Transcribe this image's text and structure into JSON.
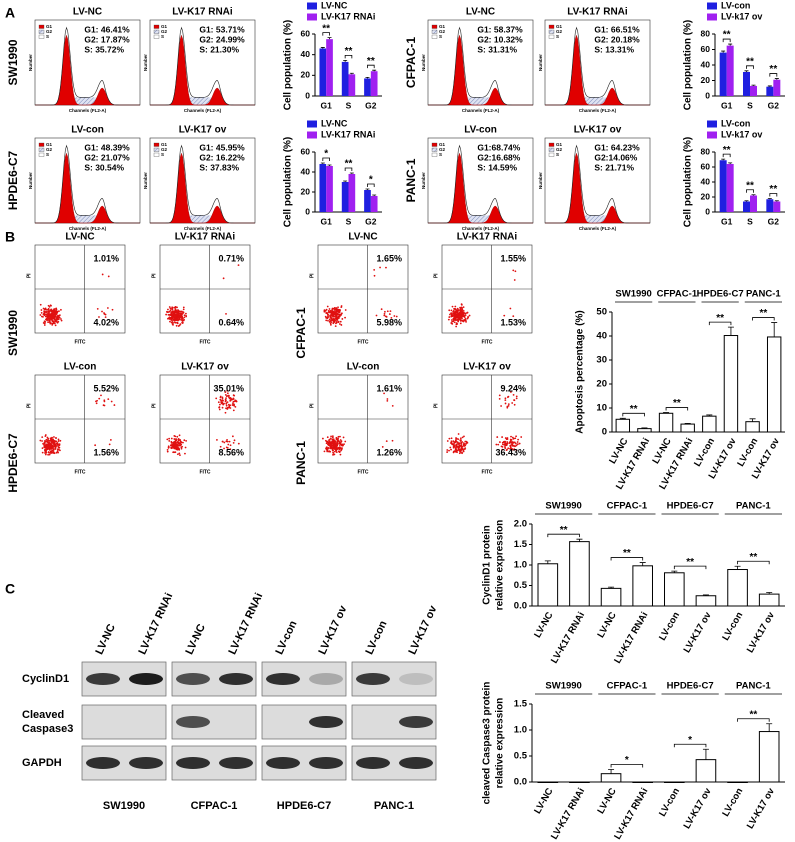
{
  "panel_labels": [
    "A",
    "B",
    "C"
  ],
  "hist_legend": [
    "G1",
    "G2",
    "S"
  ],
  "hist_xlabel": "Channels (FL2-A)",
  "hist_ylabel": "Number",
  "cycle": [
    {
      "cell_line": "SW1990",
      "plots": [
        {
          "title": "LV-NC",
          "stats": [
            "G1: 46.41%",
            "G2: 17.87%",
            "S: 35.72%"
          ]
        },
        {
          "title": "LV-K17 RNAi",
          "stats": [
            "G1: 53.71%",
            "G2: 24.99%",
            "S: 21.30%"
          ]
        }
      ]
    },
    {
      "cell_line": "CFPAC-1",
      "plots": [
        {
          "title": "LV-NC",
          "stats": [
            "G1: 58.37%",
            "G2: 10.32%",
            "S: 31.31%"
          ]
        },
        {
          "title": "LV-K17 RNAi",
          "stats": [
            "G1: 66.51%",
            "G2: 20.18%",
            "S: 13.31%"
          ]
        }
      ]
    },
    {
      "cell_line": "HPDE6-C7",
      "plots": [
        {
          "title": "LV-con",
          "stats": [
            "G1: 48.39%",
            "G2: 21.07%",
            "S: 30.54%"
          ]
        },
        {
          "title": "LV-K17 ov",
          "stats": [
            "G1: 45.95%",
            "G2: 16.22%",
            "S: 37.83%"
          ]
        }
      ]
    },
    {
      "cell_line": "PANC-1",
      "plots": [
        {
          "title": "LV-con",
          "stats": [
            "G1:68.74%",
            "G2:16.68%",
            "S: 14.59%"
          ]
        },
        {
          "title": "LV-K17 ov",
          "stats": [
            "G1: 64.23%",
            "G2:14.06%",
            "S: 21.71%"
          ]
        }
      ]
    }
  ],
  "flow_xlabel": "FITC",
  "flow_ylabel": "PI",
  "apoptosis": [
    {
      "cell_line": "SW1990",
      "plots": [
        {
          "title": "LV-NC",
          "upper_right": "1.01%",
          "lower_right": "4.02%"
        },
        {
          "title": "LV-K17 RNAi",
          "upper_right": "0.71%",
          "lower_right": "0.64%"
        }
      ]
    },
    {
      "cell_line": "CFPAC-1",
      "plots": [
        {
          "title": "LV-NC",
          "upper_right": "1.65%",
          "lower_right": "5.98%"
        },
        {
          "title": "LV-K17 RNAi",
          "upper_right": "1.55%",
          "lower_right": "1.53%"
        }
      ]
    },
    {
      "cell_line": "HPDE6-C7",
      "plots": [
        {
          "title": "LV-con",
          "upper_right": "5.52%",
          "lower_right": "1.56%"
        },
        {
          "title": "LV-K17 ov",
          "upper_right": "35.01%",
          "lower_right": "8.56%"
        }
      ]
    },
    {
      "cell_line": "PANC-1",
      "plots": [
        {
          "title": "LV-con",
          "upper_right": "1.61%",
          "lower_right": "1.26%"
        },
        {
          "title": "LV-K17 ov",
          "upper_right": "9.24%",
          "lower_right": "36.43%"
        }
      ]
    }
  ],
  "blot": {
    "lanes": [
      "LV-NC",
      "LV-K17 RNAi",
      "LV-NC",
      "LV-K17 RNAi",
      "LV-con",
      "LV-K17 ov",
      "LV-con",
      "LV-K17 ov"
    ],
    "rows": [
      [
        "CyclinD1"
      ],
      [
        "Cleaved",
        "Caspase3"
      ],
      [
        "GAPDH"
      ]
    ],
    "groups": [
      "SW1990",
      "CFPAC-1",
      "HPDE6-C7",
      "PANC-1"
    ]
  },
  "chart_data": [
    {
      "type": "bar",
      "ylabel": "Cell population (%)",
      "categories": [
        "G1",
        "S",
        "G2"
      ],
      "ylim": [
        0,
        60
      ],
      "yticks": [
        0,
        20,
        40,
        60
      ],
      "series": [
        {
          "name": "LV-NC",
          "color": "#1f1fe0",
          "values": [
            46,
            33,
            17
          ],
          "errors": [
            1,
            1.5,
            1
          ]
        },
        {
          "name": "LV-K17 RNAi",
          "color": "#a020f0",
          "values": [
            55,
            21,
            24
          ],
          "errors": [
            1.5,
            1,
            1
          ]
        }
      ],
      "annotations": [
        "**",
        "**",
        "**"
      ]
    },
    {
      "type": "bar",
      "ylabel": "Cell population (%)",
      "categories": [
        "G1",
        "S",
        "G2"
      ],
      "ylim": [
        0,
        80
      ],
      "yticks": [
        0,
        20,
        40,
        60,
        80
      ],
      "series": [
        {
          "name": "LV-con",
          "color": "#1f1fe0",
          "values": [
            56,
            31,
            12
          ],
          "errors": [
            2,
            1.5,
            1
          ]
        },
        {
          "name": "LV-k17 ov",
          "color": "#a020f0",
          "values": [
            65,
            13,
            21
          ],
          "errors": [
            2,
            1,
            1.5
          ]
        }
      ],
      "annotations": [
        "**",
        "**",
        "**"
      ]
    },
    {
      "type": "bar",
      "ylabel": "Cell population (%)",
      "categories": [
        "G1",
        "S",
        "G2"
      ],
      "ylim": [
        0,
        60
      ],
      "yticks": [
        0,
        20,
        40,
        60
      ],
      "series": [
        {
          "name": "LV-NC",
          "color": "#1f1fe0",
          "values": [
            48,
            30,
            22
          ],
          "errors": [
            1,
            1,
            1
          ]
        },
        {
          "name": "LV-K17 RNAi",
          "color": "#a020f0",
          "values": [
            46,
            38,
            16
          ],
          "errors": [
            1,
            1,
            1
          ]
        }
      ],
      "annotations": [
        "*",
        "**",
        "*"
      ]
    },
    {
      "type": "bar",
      "ylabel": "Cell population (%)",
      "categories": [
        "G1",
        "S",
        "G2"
      ],
      "ylim": [
        0,
        80
      ],
      "yticks": [
        0,
        20,
        40,
        60,
        80
      ],
      "series": [
        {
          "name": "LV-con",
          "color": "#1f1fe0",
          "values": [
            69,
            14,
            17
          ],
          "errors": [
            1.5,
            1,
            1
          ]
        },
        {
          "name": "LV-k17 ov",
          "color": "#a020f0",
          "values": [
            64,
            22,
            14
          ],
          "errors": [
            1.5,
            1,
            1
          ]
        }
      ],
      "annotations": [
        "**",
        "**",
        "**"
      ]
    },
    {
      "type": "bar",
      "ylabel": "Apoptosis percentage (%)",
      "groups": [
        "SW1990",
        "CFPAC-1",
        "HPDE6-C7",
        "PANC-1"
      ],
      "categories": [
        "LV-NC",
        "LV-K17 RNAi",
        "LV-NC",
        "LV-K17 RNAi",
        "LV-con",
        "LV-K17 ov",
        "LV-con",
        "LV-K17 ov"
      ],
      "values": [
        5.3,
        1.4,
        7.8,
        3.3,
        6.6,
        40.2,
        4.3,
        39.6
      ],
      "errors": [
        0.4,
        0.3,
        0.3,
        0.3,
        0.5,
        3.5,
        1.2,
        6.0
      ],
      "color": "#ffffff",
      "ylim": [
        0,
        50
      ],
      "yticks": [
        0,
        10,
        20,
        30,
        40,
        50
      ],
      "annotations": [
        "**",
        "**",
        "**",
        "**"
      ]
    },
    {
      "type": "bar",
      "ylabel": [
        "CyclinD1 protein",
        "relative expression"
      ],
      "groups": [
        "SW1990",
        "CFPAC-1",
        "HPDE6-C7",
        "PANC-1"
      ],
      "categories": [
        "LV-NC",
        "LV-K17 RNAi",
        "LV-NC",
        "LV-K17 RNAi",
        "LV-con",
        "LV-K17 ov",
        "LV-con",
        "LV-K17 ov"
      ],
      "values": [
        1.03,
        1.57,
        0.43,
        0.98,
        0.81,
        0.25,
        0.89,
        0.29
      ],
      "errors": [
        0.07,
        0.06,
        0.03,
        0.08,
        0.04,
        0.02,
        0.08,
        0.04
      ],
      "color": "#ffffff",
      "ylim": [
        0,
        2
      ],
      "yticks": [
        {
          "value": 0,
          "label": "0.0"
        },
        0.5,
        {
          "value": 1,
          "label": "1.0"
        },
        1.5,
        {
          "value": 2,
          "label": "2.0"
        }
      ],
      "annotations": [
        "**",
        "**",
        "**",
        "**"
      ]
    },
    {
      "type": "bar",
      "ylabel": [
        "cleaved Caspase3 protein",
        "relative expression"
      ],
      "groups": [
        "SW1990",
        "CFPAC-1",
        "HPDE6-C7",
        "PANC-1"
      ],
      "categories": [
        "LV-NC",
        "LV-K17 RNAi",
        "LV-NC",
        "LV-K17 RNAi",
        "LV-con",
        "LV-K17 ov",
        "LV-con",
        "LV-K17 ov"
      ],
      "values": [
        0,
        0,
        0.16,
        0,
        0,
        0.43,
        0,
        0.97
      ],
      "errors": [
        0,
        0,
        0.08,
        0,
        0,
        0.2,
        0,
        0.15
      ],
      "color": "#ffffff",
      "ylim": [
        0,
        1.5
      ],
      "yticks": [
        {
          "value": 0,
          "label": "0.0"
        },
        0.5,
        {
          "value": 1,
          "label": "1.0"
        },
        1.5
      ],
      "annotations": [
        null,
        "*",
        "*",
        "**"
      ]
    }
  ]
}
